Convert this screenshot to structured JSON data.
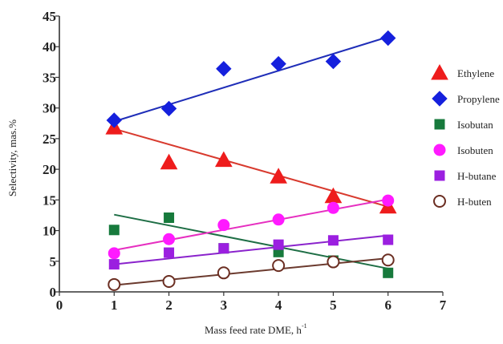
{
  "chart_data": {
    "type": "scatter",
    "title": "",
    "xlabel": "Mass feed rate DME, h",
    "xlabel_superscript": "-1",
    "ylabel": "Selectivity, mas.%",
    "xlim": [
      0,
      7
    ],
    "ylim": [
      0,
      45
    ],
    "x_ticks": [
      0,
      1,
      2,
      3,
      4,
      5,
      6,
      7
    ],
    "y_ticks": [
      0,
      5,
      10,
      15,
      20,
      25,
      30,
      35,
      40,
      45
    ],
    "grid": false,
    "legend_position": "right",
    "series": [
      {
        "name": "Ethylene",
        "marker": "triangle",
        "filled": true,
        "color": "#ee1c1c",
        "line_color": "#d83a2e",
        "x": [
          1,
          2,
          3,
          4,
          5,
          6
        ],
        "y": [
          26.8,
          21.1,
          21.5,
          18.8,
          15.6,
          13.9
        ],
        "fit": [
          [
            1,
            26.6
          ],
          [
            6,
            13.9
          ]
        ]
      },
      {
        "name": "Propylene",
        "marker": "diamond",
        "filled": true,
        "color": "#1520dd",
        "line_color": "#1f2eb8",
        "x": [
          1,
          2,
          3,
          4,
          5,
          6
        ],
        "y": [
          28.0,
          29.9,
          36.4,
          37.2,
          37.6,
          41.4
        ],
        "fit": [
          [
            1,
            27.8
          ],
          [
            6,
            41.6
          ]
        ]
      },
      {
        "name": "Isobutan",
        "marker": "square",
        "filled": true,
        "color": "#177a3c",
        "line_color": "#1e6e45",
        "x": [
          1,
          2,
          3,
          4,
          5,
          6
        ],
        "y": [
          10.1,
          12.1,
          7.1,
          6.5,
          5.1,
          3.1
        ],
        "fit": [
          [
            1,
            12.6
          ],
          [
            6,
            3.8
          ]
        ]
      },
      {
        "name": "Isobuten",
        "marker": "circle",
        "filled": true,
        "color": "#ff1aff",
        "line_color": "#e62fc0",
        "x": [
          1,
          2,
          3,
          4,
          5,
          6
        ],
        "y": [
          6.3,
          8.6,
          10.9,
          11.8,
          13.7,
          14.9
        ],
        "fit": [
          [
            1,
            6.8
          ],
          [
            6,
            15.1
          ]
        ]
      },
      {
        "name": "H-butane",
        "marker": "square",
        "filled": true,
        "color": "#9b1fe0",
        "line_color": "#8a23cc",
        "x": [
          1,
          2,
          3,
          4,
          5,
          6
        ],
        "y": [
          4.5,
          6.4,
          7.1,
          7.7,
          8.4,
          8.5
        ],
        "fit": [
          [
            1,
            4.5
          ],
          [
            6,
            9.2
          ]
        ]
      },
      {
        "name": "H-buten",
        "marker": "circle",
        "filled": false,
        "color": "#6b2e22",
        "line_color": "#6b3a2e",
        "x": [
          1,
          2,
          3,
          4,
          5,
          6
        ],
        "y": [
          1.2,
          1.7,
          3.1,
          4.3,
          4.9,
          5.2
        ],
        "fit": [
          [
            1,
            1.1
          ],
          [
            6,
            5.5
          ]
        ]
      }
    ]
  }
}
